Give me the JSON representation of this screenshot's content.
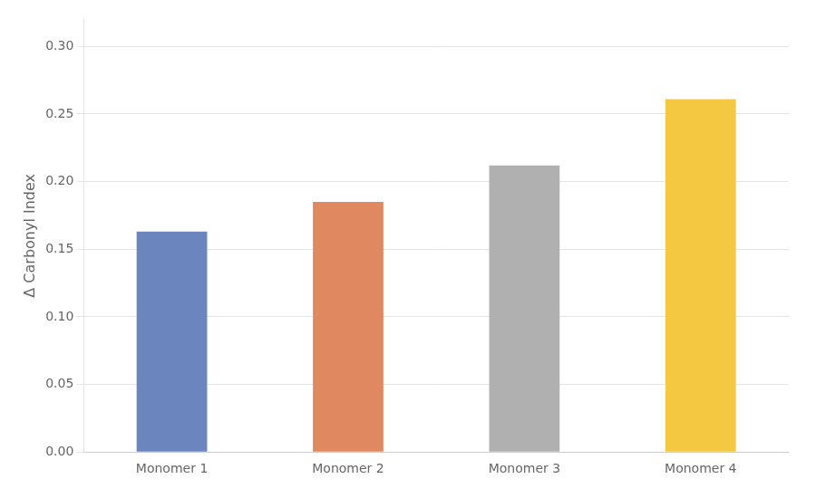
{
  "chart_data": {
    "type": "bar",
    "categories": [
      "Monomer 1",
      "Monomer 2",
      "Monomer 3",
      "Monomer 4"
    ],
    "values": [
      0.163,
      0.185,
      0.212,
      0.261
    ],
    "colors": [
      "#6b85be",
      "#e08860",
      "#b0b0b0",
      "#f5c842"
    ],
    "ylabel": "Δ Carbonyl Index",
    "ylim": [
      0,
      0.32
    ],
    "yticks": [
      {
        "value": 0.0,
        "label": "0.00"
      },
      {
        "value": 0.05,
        "label": "0.05"
      },
      {
        "value": 0.1,
        "label": "0.10"
      },
      {
        "value": 0.15,
        "label": "0.15"
      },
      {
        "value": 0.2,
        "label": "0.20"
      },
      {
        "value": 0.25,
        "label": "0.25"
      },
      {
        "value": 0.3,
        "label": "0.30"
      }
    ],
    "grid": true
  }
}
